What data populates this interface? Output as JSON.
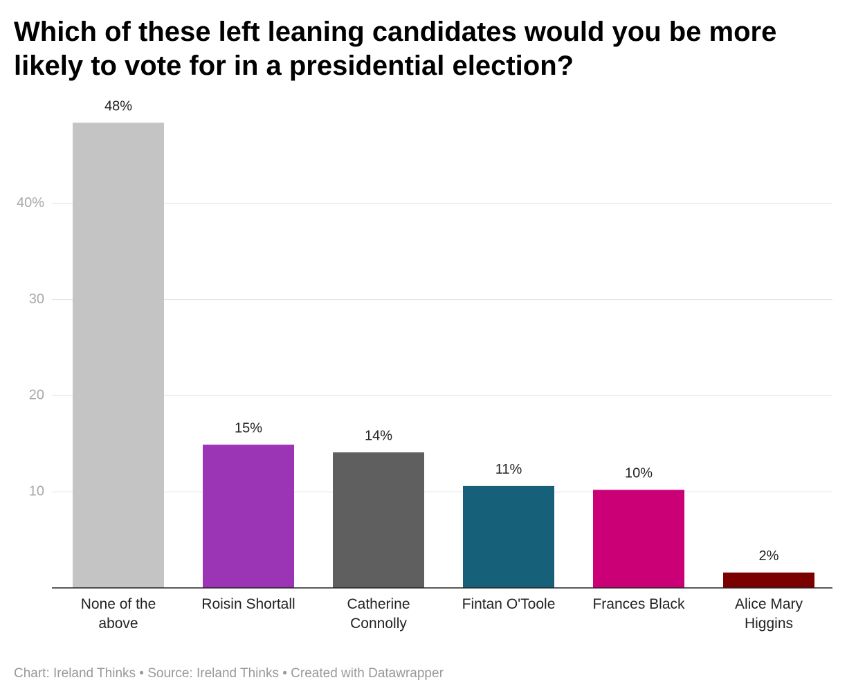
{
  "chart_data": {
    "type": "bar",
    "title": "Which of these left leaning candidates would you be more likely to vote for in a presidential election?",
    "footer": "Chart: Ireland Thinks • Source: Ireland Thinks • Created with Datawrapper",
    "categories": [
      "None of the above",
      "Roisin Shortall",
      "Catherine Connolly",
      "Fintan O'Toole",
      "Frances Black",
      "Alice Mary Higgins"
    ],
    "values": [
      48.4,
      14.9,
      14.1,
      10.6,
      10.2,
      1.6
    ],
    "value_labels": [
      "48%",
      "15%",
      "14%",
      "11%",
      "10%",
      "2%"
    ],
    "colors": [
      "#c4c4c4",
      "#9b35b5",
      "#5f5f5f",
      "#17607a",
      "#cb0077",
      "#7b0000"
    ],
    "ylim": [
      0,
      50
    ],
    "yticks": [
      {
        "value": 40,
        "label": "40%"
      },
      30,
      20,
      10
    ],
    "grid": true
  }
}
